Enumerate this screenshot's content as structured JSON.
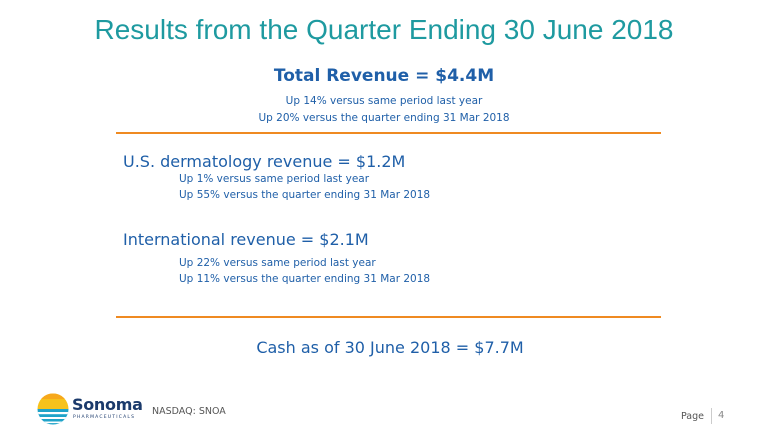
{
  "slide": {
    "title": "Results from the Quarter Ending 30 June 2018",
    "total_revenue": {
      "heading": "Total Revenue = $4.4M",
      "details": [
        "Up 14% versus same period last year",
        "Up 20% versus the quarter ending 31 Mar 2018"
      ]
    },
    "us_dermatology": {
      "heading": "U.S. dermatology revenue = $1.2M",
      "details": [
        "Up 1% versus same period last year",
        "Up 55% versus the quarter ending 31 Mar 2018"
      ]
    },
    "international": {
      "heading": "International revenue = $2.1M",
      "details": [
        "Up 22% versus same period last year",
        "Up 11% versus the quarter ending 31 Mar 2018"
      ]
    },
    "cash": "Cash as of 30 June 2018 = $7.7M"
  },
  "footer": {
    "logo_word": "Sonoma",
    "logo_tagline": "PHARMACEUTICALS",
    "ticker": "NASDAQ: SNOA",
    "page_label": "Page",
    "page_number": "4"
  },
  "colors": {
    "title": "#1e9aa0",
    "body_text": "#1f5fa8",
    "rule": "#ef8a21",
    "logo_navy": "#1b3a6b"
  }
}
